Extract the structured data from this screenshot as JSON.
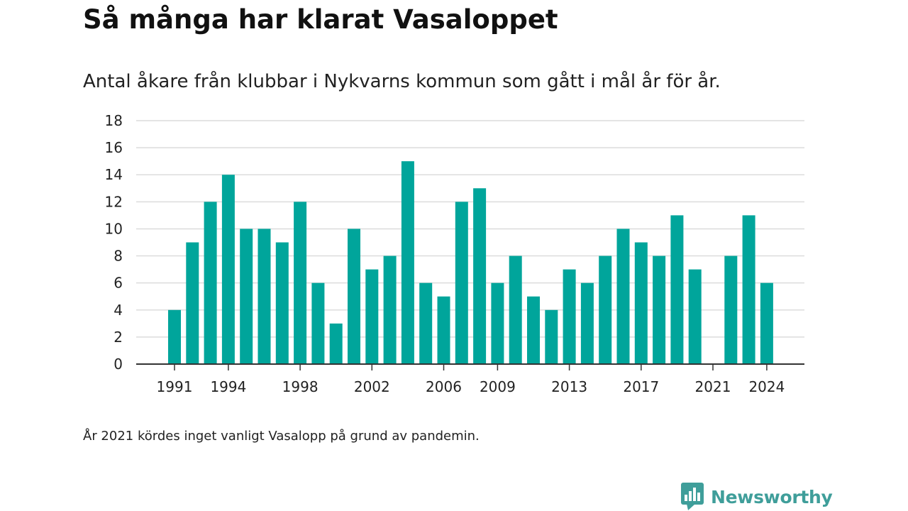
{
  "colors": {
    "bar": "#00a59b",
    "grid": "#dcdcdc",
    "axis": "#333333",
    "text": "#222222",
    "brand": "#3f9e9a"
  },
  "brand": {
    "name": "Newsworthy",
    "icon": "newsworthy-logo-icon"
  },
  "note": "År 2021 kördes inget vanligt Vasalopp på grund av pandemin.",
  "chart_data": {
    "type": "bar",
    "title": "Så många har klarat Vasaloppet",
    "subtitle": "Antal åkare från klubbar i Nykvarns kommun som gått i mål år för år.",
    "xlabel": "",
    "ylabel": "",
    "ylim": [
      0,
      18
    ],
    "yticks": [
      0,
      2,
      4,
      6,
      8,
      10,
      12,
      14,
      16,
      18
    ],
    "xticks": [
      "1991",
      "1994",
      "1998",
      "2002",
      "2006",
      "2009",
      "2013",
      "2017",
      "2021",
      "2024"
    ],
    "grid": true,
    "categories": [
      "1991",
      "1992",
      "1993",
      "1994",
      "1995",
      "1996",
      "1997",
      "1998",
      "1999",
      "2000",
      "2001",
      "2002",
      "2003",
      "2004",
      "2005",
      "2006",
      "2007",
      "2008",
      "2009",
      "2010",
      "2011",
      "2012",
      "2013",
      "2014",
      "2015",
      "2016",
      "2017",
      "2018",
      "2019",
      "2020",
      "2021",
      "2022",
      "2023",
      "2024"
    ],
    "values": [
      4,
      9,
      12,
      14,
      10,
      10,
      9,
      12,
      6,
      3,
      10,
      7,
      8,
      15,
      6,
      5,
      12,
      13,
      6,
      8,
      5,
      4,
      7,
      6,
      8,
      10,
      9,
      8,
      11,
      7,
      0,
      8,
      11,
      6
    ]
  }
}
